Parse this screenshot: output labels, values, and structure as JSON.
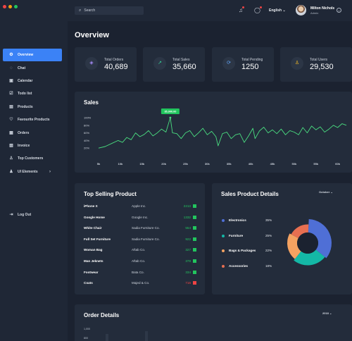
{
  "window": {
    "controls": [
      "#ef4444",
      "#f59e0b",
      "#22c55e"
    ]
  },
  "sidebar": {
    "items": [
      {
        "label": "Overview",
        "icon": "gear-icon",
        "active": true
      },
      {
        "label": "Chat",
        "icon": "chat-icon"
      },
      {
        "label": "Calendar",
        "icon": "calendar-icon"
      },
      {
        "label": "Todo list",
        "icon": "checklist-icon"
      },
      {
        "label": "Products",
        "icon": "box-icon"
      },
      {
        "label": "Favourite Products",
        "icon": "heart-icon"
      },
      {
        "label": "Orders",
        "icon": "cart-icon"
      },
      {
        "label": "Invoice",
        "icon": "invoice-icon"
      },
      {
        "label": "Top Customers",
        "icon": "user-icon"
      },
      {
        "label": "UI Elements",
        "icon": "users-icon",
        "has_submenu": true
      }
    ],
    "logout": {
      "label": "Log Out",
      "icon": "logout-icon"
    }
  },
  "header": {
    "search_placeholder": "Search",
    "language": "English",
    "user": {
      "name": "Milton Nichols",
      "role": "Admin"
    }
  },
  "page_title": "Overview",
  "stats": [
    {
      "label": "Total Orders",
      "value": "40,689",
      "icon": "cube-icon",
      "color": "#a78bfa"
    },
    {
      "label": "Total Sales",
      "value": "35,660",
      "icon": "trend-icon",
      "color": "#34d399"
    },
    {
      "label": "Total Pending",
      "value": "1250",
      "icon": "refresh-icon",
      "color": "#60a5fa"
    },
    {
      "label": "Total Users",
      "value": "29,530",
      "icon": "user-icon",
      "color": "#fbbf24"
    }
  ],
  "sales": {
    "title": "Sales",
    "tooltip": "35,000.00",
    "line_color": "#4ade80",
    "chart_data": {
      "type": "line",
      "x_ticks": [
        "5k",
        "10k",
        "15k",
        "20k",
        "25k",
        "30k",
        "35k",
        "40k",
        "45k",
        "50k",
        "55k",
        "60k"
      ],
      "y_ticks": [
        "100%",
        "80%",
        "60%",
        "40%",
        "20%"
      ],
      "ylim": [
        0,
        100
      ],
      "xlim": [
        5,
        62
      ],
      "points": [
        [
          5,
          20
        ],
        [
          6.5,
          24
        ],
        [
          8,
          32
        ],
        [
          9.5,
          40
        ],
        [
          10.5,
          35
        ],
        [
          11.5,
          48
        ],
        [
          12.5,
          42
        ],
        [
          13.5,
          60
        ],
        [
          14.5,
          50
        ],
        [
          15.5,
          56
        ],
        [
          16.5,
          66
        ],
        [
          17.5,
          52
        ],
        [
          18.5,
          60
        ],
        [
          19.5,
          70
        ],
        [
          20.5,
          62
        ],
        [
          21.5,
          100
        ],
        [
          22,
          60
        ],
        [
          23,
          58
        ],
        [
          24,
          45
        ],
        [
          25,
          60
        ],
        [
          26,
          66
        ],
        [
          27,
          50
        ],
        [
          28,
          60
        ],
        [
          29,
          72
        ],
        [
          30,
          55
        ],
        [
          31,
          64
        ],
        [
          32,
          50
        ],
        [
          32.5,
          26
        ],
        [
          33.5,
          58
        ],
        [
          34.5,
          62
        ],
        [
          35.5,
          45
        ],
        [
          36.5,
          55
        ],
        [
          37.5,
          58
        ],
        [
          38.5,
          35
        ],
        [
          39.5,
          52
        ],
        [
          40.5,
          72
        ],
        [
          41,
          45
        ],
        [
          42,
          65
        ],
        [
          43,
          75
        ],
        [
          44,
          60
        ],
        [
          45,
          68
        ],
        [
          46,
          58
        ],
        [
          47,
          70
        ],
        [
          48,
          55
        ],
        [
          49,
          66
        ],
        [
          50,
          62
        ],
        [
          51,
          55
        ],
        [
          52,
          74
        ],
        [
          53,
          60
        ],
        [
          54,
          78
        ],
        [
          55,
          68
        ],
        [
          56,
          76
        ],
        [
          57,
          62
        ],
        [
          58,
          70
        ],
        [
          59,
          80
        ],
        [
          60,
          74
        ],
        [
          61,
          84
        ],
        [
          62,
          80
        ]
      ],
      "peak": [
        21.5,
        100
      ]
    }
  },
  "top_selling": {
    "title": "Top Selling Product",
    "rows": [
      {
        "name": "iPhone X",
        "company": "Apple Inc.",
        "value": "2213",
        "color": "#22c55e"
      },
      {
        "name": "Google Home",
        "company": "Google Inc.",
        "value": "1332",
        "color": "#22c55e"
      },
      {
        "name": "White Chair",
        "company": "Sadia Furniture Co.",
        "value": "554",
        "color": "#22c55e"
      },
      {
        "name": "Full Set Furniture",
        "company": "Sadia Furniture Co.",
        "value": "922",
        "color": "#22c55e"
      },
      {
        "name": "Woman Bag",
        "company": "Aftab Co.",
        "value": "327",
        "color": "#22c55e"
      },
      {
        "name": "Man Jeknets",
        "company": "Aftab Co.",
        "value": "378",
        "color": "#22c55e"
      },
      {
        "name": "Footwear",
        "company": "Bata Co.",
        "value": "334",
        "color": "#22c55e"
      },
      {
        "name": "Coats",
        "company": "Majed & Co.",
        "value": "716",
        "color": "#ef4444"
      }
    ]
  },
  "product_details": {
    "title": "Sales Product Details",
    "period": "October",
    "chart_data": {
      "type": "pie",
      "labels": [
        "Electronics",
        "Furniture",
        "Bags & Packages",
        "Accessories"
      ],
      "values": [
        35,
        25,
        22,
        18
      ],
      "colors": [
        "#4f6fd6",
        "#14b8a6",
        "#f4a261",
        "#e76f51"
      ]
    },
    "legend_percents": [
      "35%",
      "25%",
      "22%",
      "18%"
    ]
  },
  "order_details": {
    "title": "Order Details",
    "year": "2018",
    "y_ticks": [
      "1,000",
      "800"
    ]
  }
}
